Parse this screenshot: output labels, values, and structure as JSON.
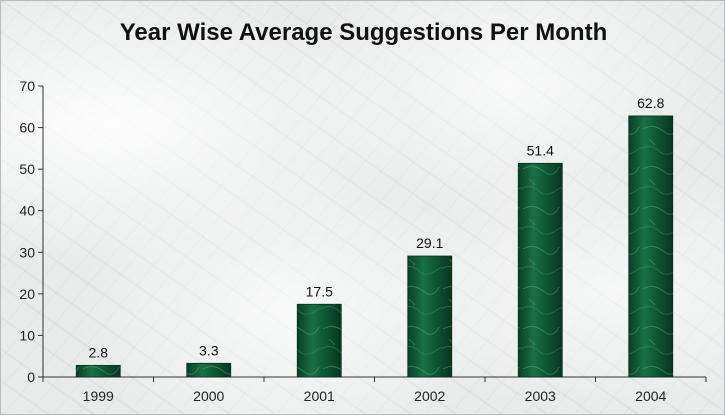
{
  "chart_data": {
    "type": "bar",
    "title": "Year Wise Average Suggestions Per Month",
    "xlabel": "",
    "ylabel": "",
    "categories": [
      "1999",
      "2000",
      "2001",
      "2002",
      "2003",
      "2004"
    ],
    "values": [
      2.8,
      3.3,
      17.5,
      29.1,
      51.4,
      62.8
    ],
    "data_labels": [
      "2.8",
      "3.3",
      "17.5",
      "29.1",
      "51.4",
      "62.8"
    ],
    "ylim": [
      0,
      70
    ],
    "yticks": [
      0,
      10,
      20,
      30,
      40,
      50,
      60,
      70
    ],
    "grid": false,
    "legend": "none",
    "bar_color": "#0f5a35",
    "bar_highlight": "#3fa070"
  }
}
